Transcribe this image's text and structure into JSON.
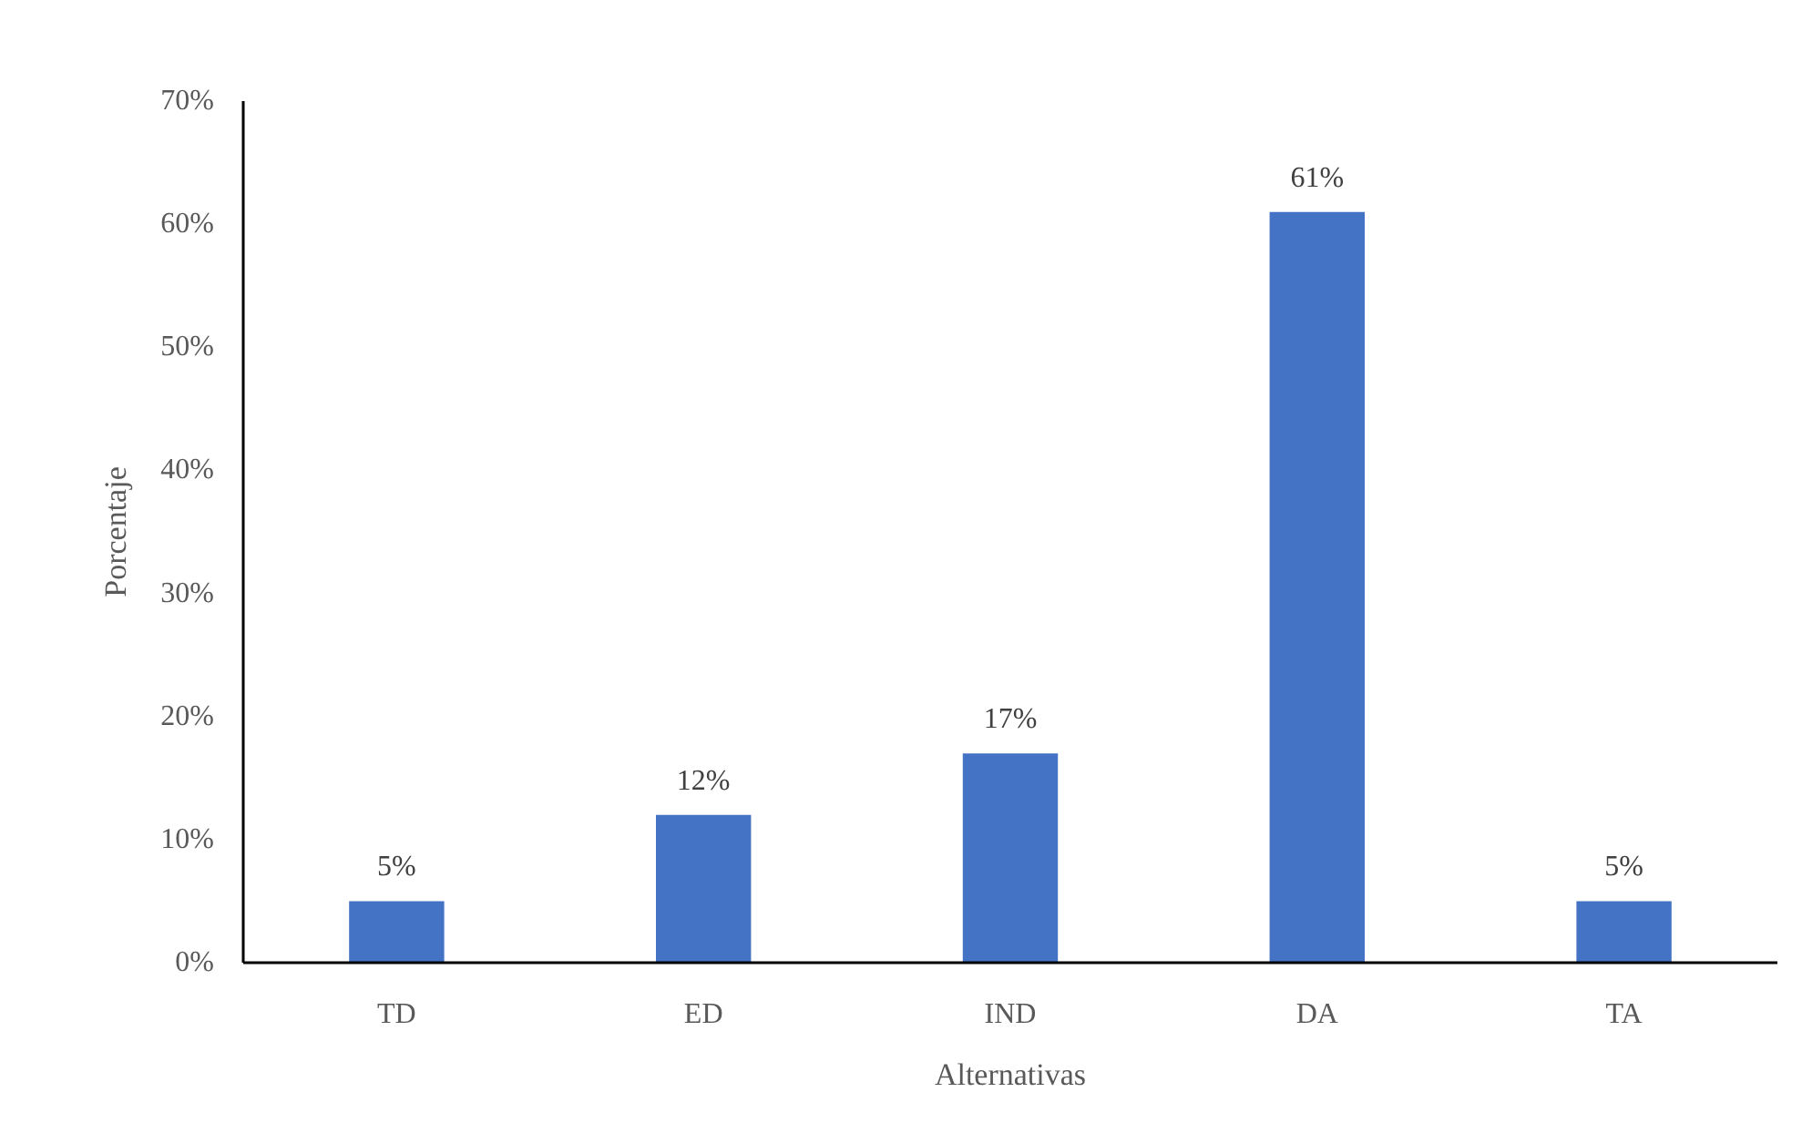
{
  "chart_data": {
    "type": "bar",
    "xlabel": "Alternativas",
    "ylabel": "Porcentaje",
    "categories": [
      "TD",
      "ED",
      "IND",
      "DA",
      "TA"
    ],
    "values": [
      5,
      12,
      17,
      61,
      5
    ],
    "value_labels": [
      "5%",
      "12%",
      "17%",
      "61%",
      "5%"
    ],
    "color": "#4472c4",
    "ylim": [
      0,
      70
    ],
    "yticks": [
      {
        "value": 0,
        "label": "0%"
      },
      {
        "value": 10,
        "label": "10%"
      },
      {
        "value": 20,
        "label": "20%"
      },
      {
        "value": 30,
        "label": "30%"
      },
      {
        "value": 40,
        "label": "40%"
      },
      {
        "value": 50,
        "label": "50%"
      },
      {
        "value": 60,
        "label": "60%"
      },
      {
        "value": 70,
        "label": "70%"
      }
    ]
  }
}
